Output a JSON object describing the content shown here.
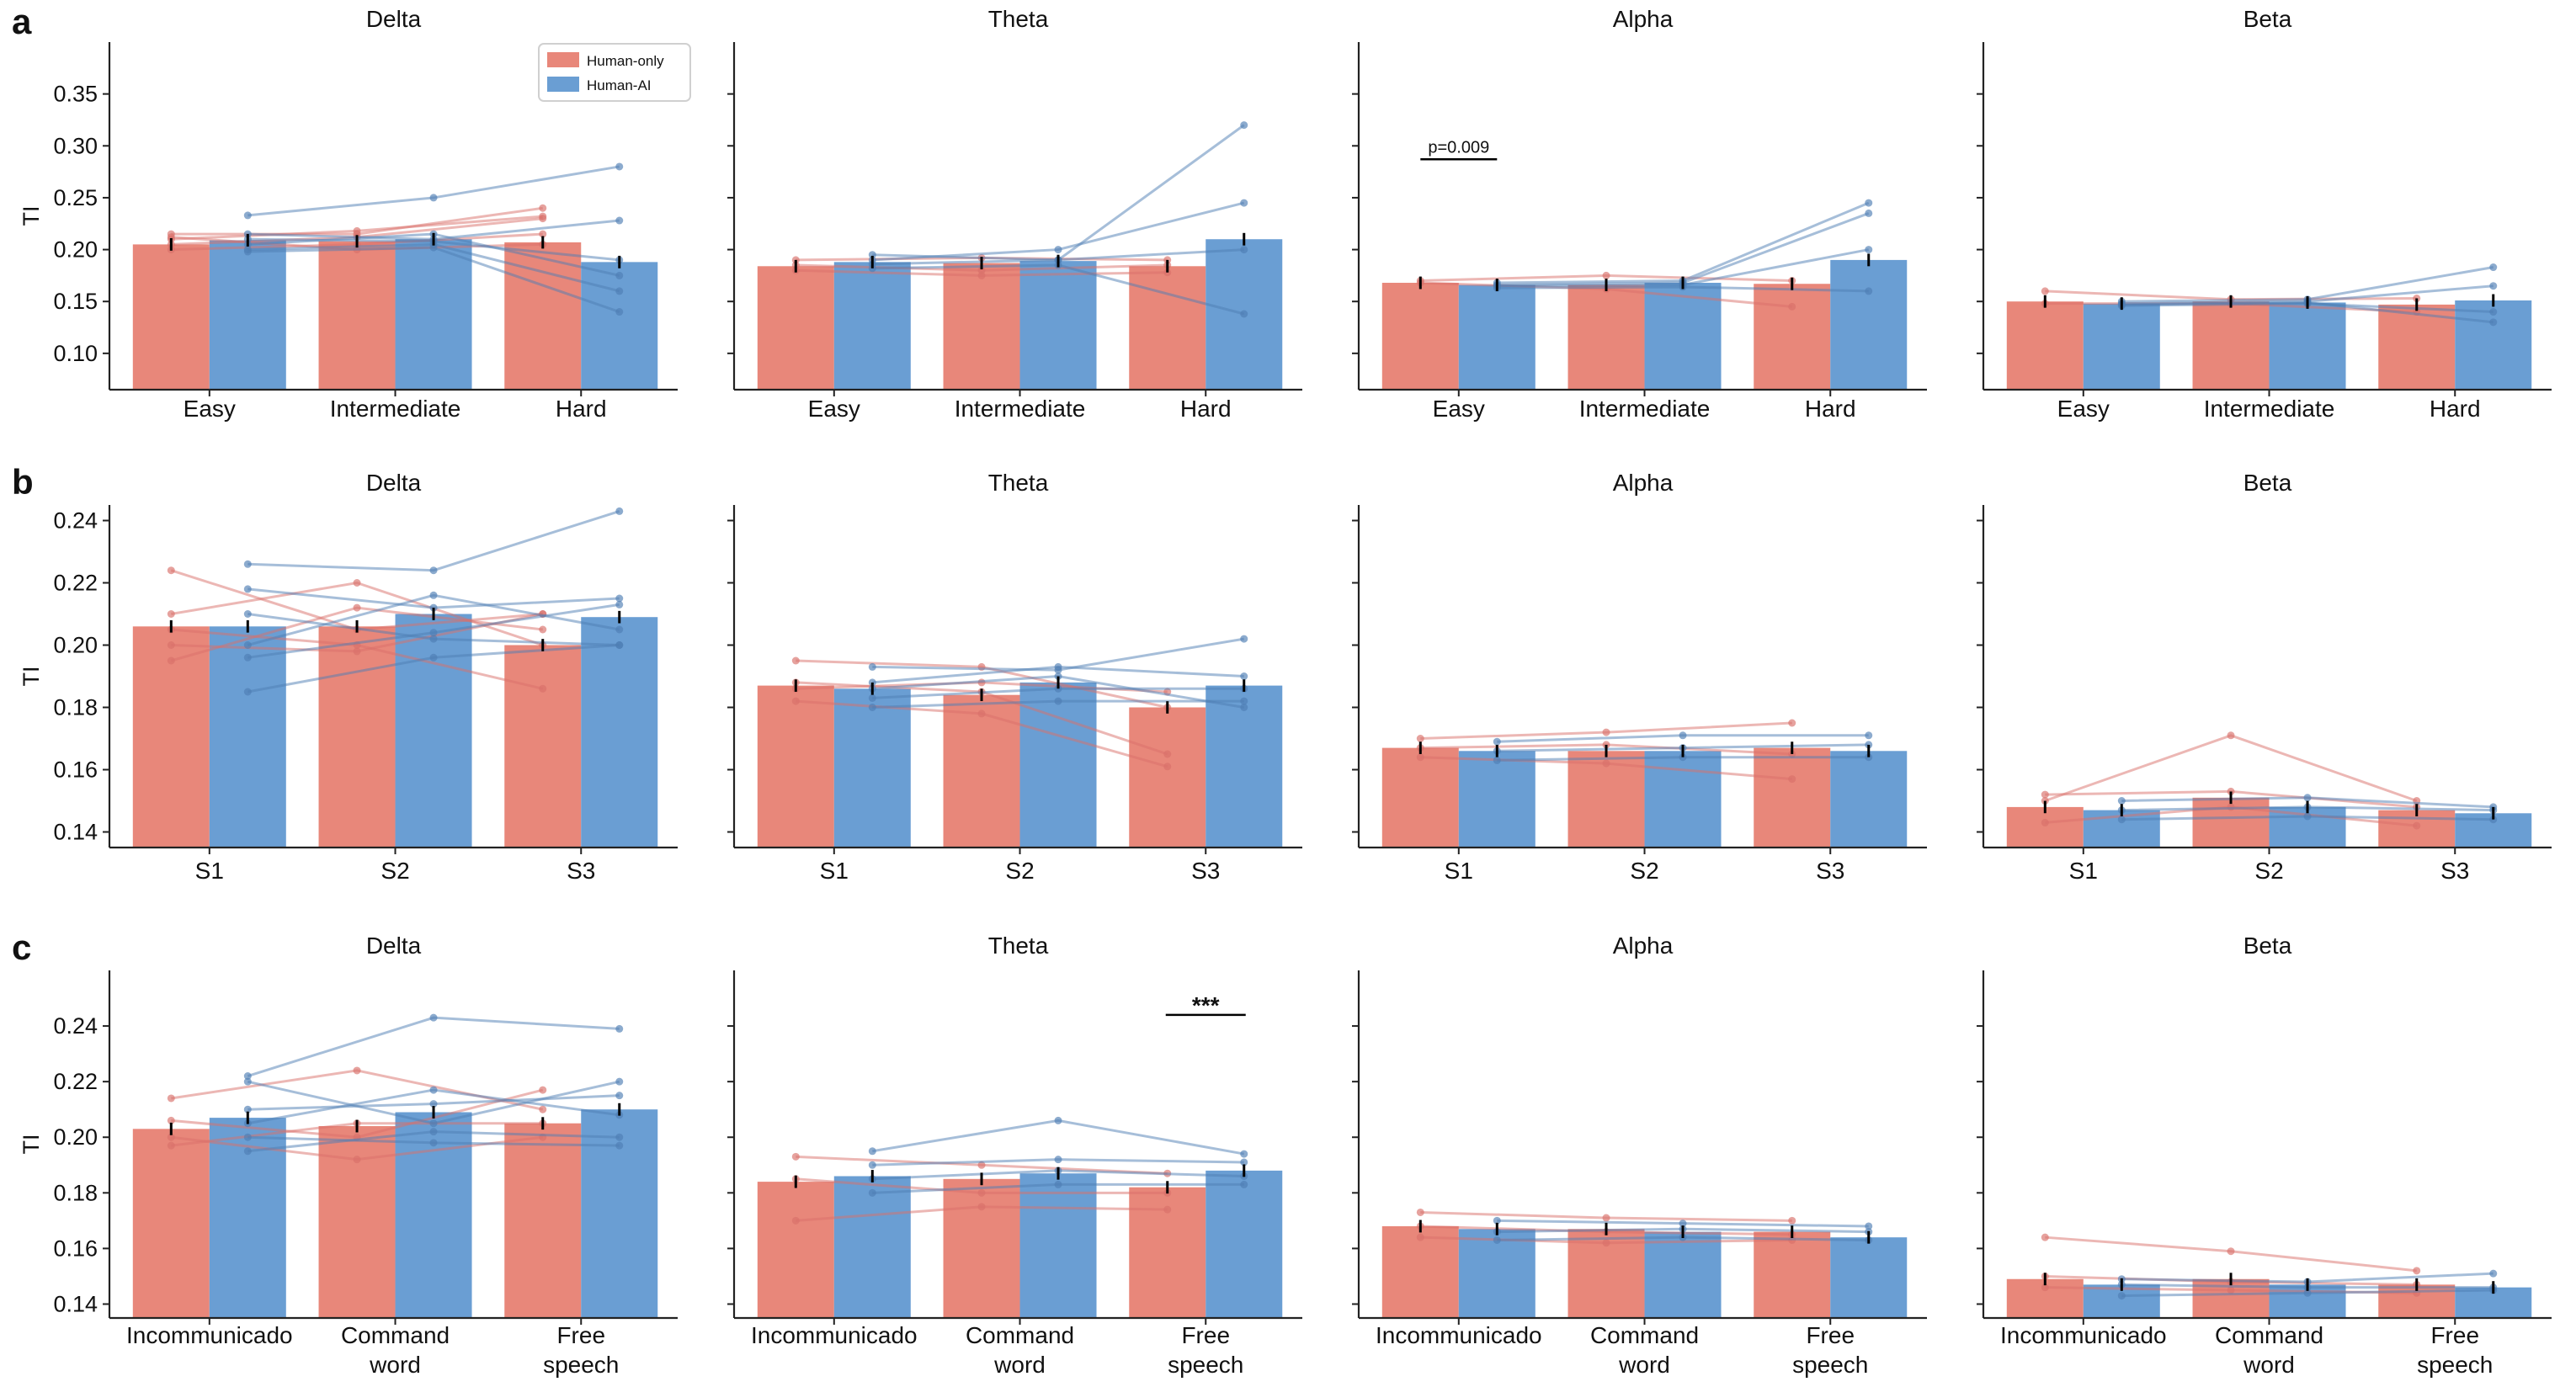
{
  "legend": {
    "entries": [
      "Human-only",
      "Human-AI"
    ]
  },
  "colors": {
    "human_only": "#E8877A",
    "human_ai": "#6A9ED3",
    "individual_human_only": "#D9706A",
    "individual_human_ai": "#4E7EB3",
    "error_bar": "#000000",
    "axis": "#222222"
  },
  "chart_data": [
    {
      "type": "bar",
      "row_label": "a",
      "ylabel": "TI",
      "ylim": [
        0.065,
        0.4
      ],
      "yticks": [
        "0.10",
        "0.15",
        "0.20",
        "0.25",
        "0.30",
        "0.35"
      ],
      "categories": [
        "Easy",
        "Intermediate",
        "Hard"
      ],
      "panels": [
        {
          "title": "Delta",
          "series": [
            {
              "name": "Human-only",
              "values": [
                0.205,
                0.208,
                0.207
              ]
            },
            {
              "name": "Human-AI",
              "values": [
                0.209,
                0.21,
                0.188
              ]
            }
          ],
          "individual_lines": {
            "Human-only": [
              [
                0.215,
                0.215,
                0.24
              ],
              [
                0.21,
                0.218,
                0.232
              ],
              [
                0.205,
                0.212,
                0.23
              ],
              [
                0.2,
                0.205,
                0.215
              ],
              [
                0.212,
                0.2,
                0.205
              ]
            ],
            "Human-AI": [
              [
                0.233,
                0.25,
                0.28
              ],
              [
                0.215,
                0.21,
                0.228
              ],
              [
                0.21,
                0.208,
                0.19
              ],
              [
                0.205,
                0.215,
                0.175
              ],
              [
                0.2,
                0.205,
                0.16
              ],
              [
                0.198,
                0.202,
                0.14
              ]
            ]
          }
        },
        {
          "title": "Theta",
          "series": [
            {
              "name": "Human-only",
              "values": [
                0.184,
                0.187,
                0.184
              ]
            },
            {
              "name": "Human-AI",
              "values": [
                0.188,
                0.189,
                0.21
              ]
            }
          ],
          "individual_lines": {
            "Human-only": [
              [
                0.19,
                0.192,
                0.19
              ],
              [
                0.185,
                0.18,
                0.185
              ],
              [
                0.18,
                0.175,
                0.178
              ]
            ],
            "Human-AI": [
              [
                0.195,
                0.19,
                0.32
              ],
              [
                0.19,
                0.2,
                0.245
              ],
              [
                0.186,
                0.19,
                0.2
              ],
              [
                0.182,
                0.185,
                0.138
              ]
            ]
          }
        },
        {
          "title": "Alpha",
          "annotation": {
            "text": "p=0.009",
            "y": 0.287
          },
          "series": [
            {
              "name": "Human-only",
              "values": [
                0.168,
                0.166,
                0.167
              ]
            },
            {
              "name": "Human-AI",
              "values": [
                0.166,
                0.168,
                0.19
              ]
            }
          ],
          "individual_lines": {
            "Human-only": [
              [
                0.17,
                0.175,
                0.17
              ],
              [
                0.168,
                0.162,
                0.145
              ]
            ],
            "Human-AI": [
              [
                0.168,
                0.17,
                0.245
              ],
              [
                0.166,
                0.168,
                0.235
              ],
              [
                0.165,
                0.166,
                0.2
              ],
              [
                0.163,
                0.164,
                0.16
              ]
            ]
          }
        },
        {
          "title": "Beta",
          "series": [
            {
              "name": "Human-only",
              "values": [
                0.15,
                0.15,
                0.147
              ]
            },
            {
              "name": "Human-AI",
              "values": [
                0.148,
                0.149,
                0.151
              ]
            }
          ],
          "individual_lines": {
            "Human-only": [
              [
                0.16,
                0.152,
                0.153
              ],
              [
                0.148,
                0.148,
                0.14
              ]
            ],
            "Human-AI": [
              [
                0.15,
                0.152,
                0.183
              ],
              [
                0.148,
                0.15,
                0.165
              ],
              [
                0.146,
                0.148,
                0.14
              ],
              [
                0.147,
                0.149,
                0.13
              ]
            ]
          }
        }
      ]
    },
    {
      "type": "bar",
      "row_label": "b",
      "ylabel": "TI",
      "ylim": [
        0.135,
        0.245
      ],
      "yticks": [
        "0.14",
        "0.16",
        "0.18",
        "0.20",
        "0.22",
        "0.24"
      ],
      "categories": [
        "S1",
        "S2",
        "S3"
      ],
      "panels": [
        {
          "title": "Delta",
          "series": [
            {
              "name": "Human-only",
              "values": [
                0.206,
                0.206,
                0.2
              ]
            },
            {
              "name": "Human-AI",
              "values": [
                0.206,
                0.21,
                0.209
              ]
            }
          ],
          "individual_lines": {
            "Human-only": [
              [
                0.224,
                0.205,
                0.21
              ],
              [
                0.21,
                0.22,
                0.2
              ],
              [
                0.205,
                0.2,
                0.186
              ],
              [
                0.195,
                0.212,
                0.205
              ],
              [
                0.2,
                0.198,
                0.21
              ]
            ],
            "Human-AI": [
              [
                0.226,
                0.224,
                0.243
              ],
              [
                0.218,
                0.212,
                0.215
              ],
              [
                0.21,
                0.202,
                0.2
              ],
              [
                0.2,
                0.216,
                0.205
              ],
              [
                0.196,
                0.204,
                0.213
              ],
              [
                0.185,
                0.196,
                0.2
              ]
            ]
          }
        },
        {
          "title": "Theta",
          "series": [
            {
              "name": "Human-only",
              "values": [
                0.187,
                0.184,
                0.18
              ]
            },
            {
              "name": "Human-AI",
              "values": [
                0.186,
                0.188,
                0.187
              ]
            }
          ],
          "individual_lines": {
            "Human-only": [
              [
                0.195,
                0.193,
                0.18
              ],
              [
                0.188,
                0.185,
                0.165
              ],
              [
                0.182,
                0.178,
                0.161
              ],
              [
                0.186,
                0.188,
                0.185
              ]
            ],
            "Human-AI": [
              [
                0.193,
                0.192,
                0.202
              ],
              [
                0.188,
                0.193,
                0.19
              ],
              [
                0.183,
                0.186,
                0.186
              ],
              [
                0.18,
                0.182,
                0.182
              ],
              [
                0.186,
                0.19,
                0.18
              ]
            ]
          }
        },
        {
          "title": "Alpha",
          "series": [
            {
              "name": "Human-only",
              "values": [
                0.167,
                0.166,
                0.167
              ]
            },
            {
              "name": "Human-AI",
              "values": [
                0.166,
                0.166,
                0.166
              ]
            }
          ],
          "individual_lines": {
            "Human-only": [
              [
                0.17,
                0.172,
                0.175
              ],
              [
                0.167,
                0.168,
                0.165
              ],
              [
                0.164,
                0.162,
                0.157
              ]
            ],
            "Human-AI": [
              [
                0.169,
                0.171,
                0.171
              ],
              [
                0.166,
                0.167,
                0.168
              ],
              [
                0.163,
                0.164,
                0.164
              ]
            ]
          }
        },
        {
          "title": "Beta",
          "series": [
            {
              "name": "Human-only",
              "values": [
                0.148,
                0.151,
                0.147
              ]
            },
            {
              "name": "Human-AI",
              "values": [
                0.147,
                0.148,
                0.146
              ]
            }
          ],
          "individual_lines": {
            "Human-only": [
              [
                0.15,
                0.171,
                0.15
              ],
              [
                0.152,
                0.153,
                0.148
              ],
              [
                0.143,
                0.148,
                0.142
              ]
            ],
            "Human-AI": [
              [
                0.15,
                0.151,
                0.148
              ],
              [
                0.147,
                0.148,
                0.147
              ],
              [
                0.144,
                0.145,
                0.144
              ]
            ]
          }
        }
      ]
    },
    {
      "type": "bar",
      "row_label": "c",
      "ylabel": "TI",
      "ylim": [
        0.135,
        0.26
      ],
      "yticks": [
        "0.14",
        "0.16",
        "0.18",
        "0.20",
        "0.22",
        "0.24"
      ],
      "categories": [
        "Incommunicado",
        "Command word",
        "Free speech"
      ],
      "panels": [
        {
          "title": "Delta",
          "series": [
            {
              "name": "Human-only",
              "values": [
                0.203,
                0.204,
                0.205
              ]
            },
            {
              "name": "Human-AI",
              "values": [
                0.207,
                0.209,
                0.21
              ]
            }
          ],
          "individual_lines": {
            "Human-only": [
              [
                0.214,
                0.224,
                0.21
              ],
              [
                0.206,
                0.2,
                0.217
              ],
              [
                0.2,
                0.192,
                0.2
              ],
              [
                0.197,
                0.205,
                0.205
              ]
            ],
            "Human-AI": [
              [
                0.222,
                0.243,
                0.239
              ],
              [
                0.22,
                0.205,
                0.22
              ],
              [
                0.21,
                0.212,
                0.215
              ],
              [
                0.205,
                0.217,
                0.208
              ],
              [
                0.2,
                0.198,
                0.197
              ],
              [
                0.195,
                0.202,
                0.2
              ]
            ]
          }
        },
        {
          "title": "Theta",
          "annotation": {
            "text": "***",
            "y": 0.244
          },
          "series": [
            {
              "name": "Human-only",
              "values": [
                0.184,
                0.185,
                0.182
              ]
            },
            {
              "name": "Human-AI",
              "values": [
                0.186,
                0.187,
                0.188
              ]
            }
          ],
          "individual_lines": {
            "Human-only": [
              [
                0.193,
                0.19,
                0.187
              ],
              [
                0.185,
                0.18,
                0.18
              ],
              [
                0.17,
                0.175,
                0.174
              ]
            ],
            "Human-AI": [
              [
                0.195,
                0.206,
                0.194
              ],
              [
                0.19,
                0.192,
                0.191
              ],
              [
                0.185,
                0.188,
                0.186
              ],
              [
                0.18,
                0.183,
                0.183
              ]
            ]
          }
        },
        {
          "title": "Alpha",
          "series": [
            {
              "name": "Human-only",
              "values": [
                0.168,
                0.167,
                0.166
              ]
            },
            {
              "name": "Human-AI",
              "values": [
                0.167,
                0.166,
                0.164
              ]
            }
          ],
          "individual_lines": {
            "Human-only": [
              [
                0.173,
                0.171,
                0.17
              ],
              [
                0.168,
                0.166,
                0.165
              ],
              [
                0.164,
                0.162,
                0.163
              ]
            ],
            "Human-AI": [
              [
                0.17,
                0.169,
                0.168
              ],
              [
                0.166,
                0.167,
                0.166
              ],
              [
                0.163,
                0.164,
                0.163
              ]
            ]
          }
        },
        {
          "title": "Beta",
          "series": [
            {
              "name": "Human-only",
              "values": [
                0.149,
                0.149,
                0.147
              ]
            },
            {
              "name": "Human-AI",
              "values": [
                0.147,
                0.147,
                0.146
              ]
            }
          ],
          "individual_lines": {
            "Human-only": [
              [
                0.164,
                0.159,
                0.152
              ],
              [
                0.15,
                0.148,
                0.147
              ],
              [
                0.146,
                0.145,
                0.144
              ]
            ],
            "Human-AI": [
              [
                0.149,
                0.148,
                0.151
              ],
              [
                0.147,
                0.146,
                0.146
              ],
              [
                0.143,
                0.144,
                0.145
              ]
            ]
          }
        }
      ]
    }
  ]
}
